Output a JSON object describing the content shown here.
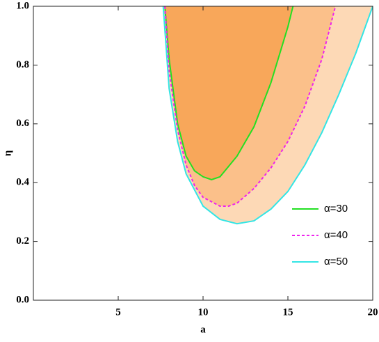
{
  "chart_data": {
    "type": "line",
    "x_label": "a",
    "y_label": "η",
    "xlim": [
      0,
      20
    ],
    "ylim": [
      0,
      1
    ],
    "xticks": [
      5,
      10,
      15,
      20
    ],
    "yticks": [
      {
        "value": 0,
        "label": "0.0"
      },
      0.2,
      0.4,
      0.6,
      0.8,
      {
        "value": 1,
        "label": "1.0"
      }
    ],
    "legend": "lower right",
    "series": [
      {
        "name": "α=30",
        "color": "#22e022",
        "fill": "#f8a75a",
        "dash": "solid",
        "x": [
          7.75,
          8,
          8.5,
          9,
          9.5,
          10,
          10.5,
          11,
          12,
          13,
          14,
          15,
          15.3
        ],
        "values": [
          1.0,
          0.82,
          0.6,
          0.49,
          0.44,
          0.42,
          0.41,
          0.42,
          0.49,
          0.59,
          0.74,
          0.93,
          1.0
        ]
      },
      {
        "name": "α=40",
        "color": "#ee22ee",
        "fill": "#fbc08a",
        "dash": "dashed",
        "x": [
          7.75,
          8,
          8.5,
          9,
          9.5,
          10,
          11,
          11.5,
          12,
          13,
          14,
          15,
          16,
          17,
          17.8
        ],
        "values": [
          1.0,
          0.78,
          0.58,
          0.46,
          0.39,
          0.35,
          0.32,
          0.32,
          0.33,
          0.38,
          0.45,
          0.54,
          0.66,
          0.82,
          1.0
        ]
      },
      {
        "name": "α=50",
        "color": "#33e5e5",
        "fill": "#fdd9b6",
        "dash": "solid",
        "x": [
          7.65,
          8,
          8.5,
          9,
          10,
          11,
          12,
          13,
          14,
          15,
          16,
          17,
          18,
          19,
          20
        ],
        "values": [
          1.0,
          0.72,
          0.54,
          0.43,
          0.32,
          0.275,
          0.26,
          0.27,
          0.31,
          0.37,
          0.46,
          0.57,
          0.7,
          0.84,
          1.0
        ]
      }
    ]
  }
}
